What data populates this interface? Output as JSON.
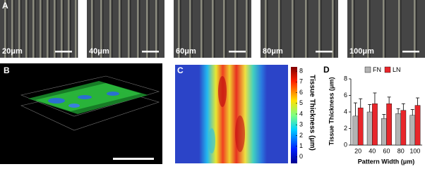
{
  "panels": {
    "a": {
      "label": "A",
      "images": [
        {
          "label": "20μm"
        },
        {
          "label": "40μm"
        },
        {
          "label": "60μm"
        },
        {
          "label": "80μm"
        },
        {
          "label": "100μm"
        }
      ]
    },
    "b": {
      "label": "B"
    },
    "c": {
      "label": "C",
      "colorbar": {
        "label": "Tissue Thickness (μm)",
        "clim": [
          -0.6,
          8.4
        ],
        "ticks": [
          0,
          1,
          2,
          3,
          4,
          5,
          6,
          7,
          8
        ]
      }
    }
  },
  "chart_data": {
    "type": "bar",
    "label": "D",
    "x_label": "Pattern Width (μm)",
    "y_label": "Tissue Thickness (μm)",
    "categories": [
      "20",
      "40",
      "60",
      "80",
      "100"
    ],
    "series": [
      {
        "name": "FN",
        "color": "#b3b3b3",
        "values": [
          3.5,
          4.0,
          3.2,
          3.8,
          3.6
        ],
        "errors": [
          1.6,
          0.9,
          0.5,
          0.6,
          0.7
        ]
      },
      {
        "name": "LN",
        "color": "#e8262b",
        "values": [
          4.5,
          5.0,
          5.0,
          4.2,
          4.8
        ],
        "errors": [
          1.1,
          1.3,
          0.8,
          0.8,
          0.9
        ]
      }
    ],
    "ylim": [
      0,
      8
    ],
    "yticks": [
      0,
      2,
      4,
      6,
      8
    ]
  }
}
